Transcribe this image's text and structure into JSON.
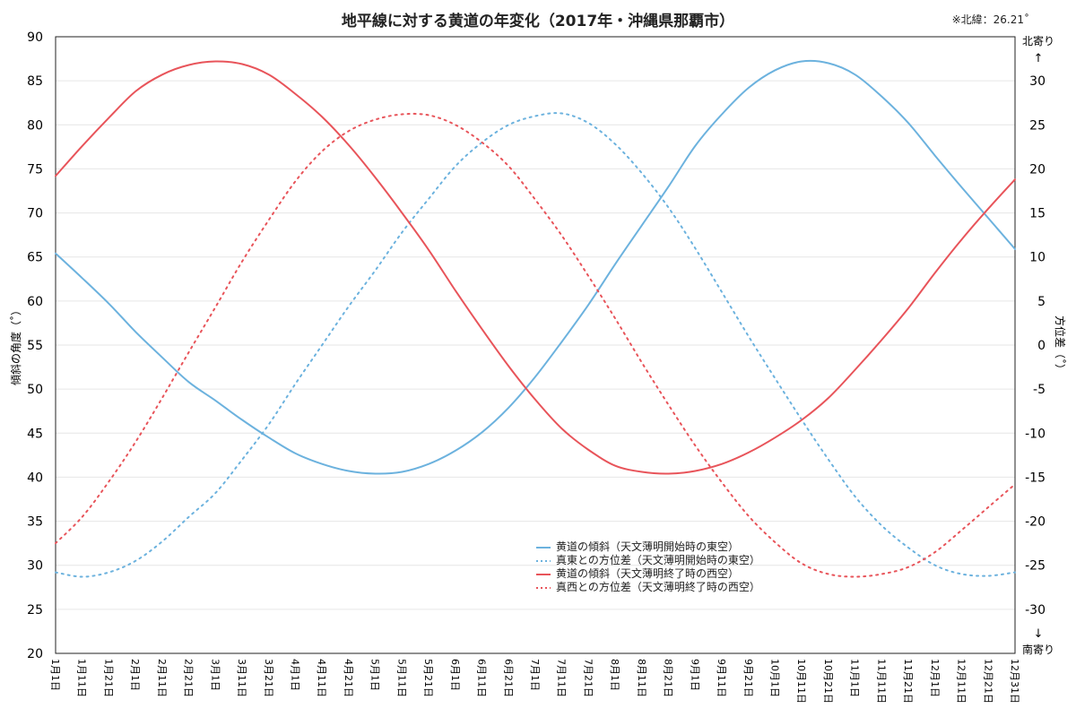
{
  "chart_data": {
    "type": "line",
    "title": "地平線に対する黄道の年変化（2017年・沖縄県那覇市）",
    "note": "※北緯：26.21˚",
    "ylabel_left": "傾斜の角度（˚）",
    "ylabel_right": "方位差（˚）",
    "right_top_label": "北寄り",
    "right_bottom_label": "南寄り",
    "ylim_left": [
      20,
      90
    ],
    "yticks_left": [
      20,
      25,
      30,
      35,
      40,
      45,
      50,
      55,
      60,
      65,
      70,
      75,
      80,
      85,
      90
    ],
    "ylim_right": [
      -35,
      35
    ],
    "yticks_right": [
      -30,
      -25,
      -20,
      -15,
      -10,
      -5,
      0,
      5,
      10,
      15,
      20,
      25,
      30
    ],
    "x_categories": [
      "1月1日",
      "1月11日",
      "1月21日",
      "2月1日",
      "2月11日",
      "2月21日",
      "3月1日",
      "3月11日",
      "3月21日",
      "4月1日",
      "4月11日",
      "4月21日",
      "5月1日",
      "5月11日",
      "5月21日",
      "6月1日",
      "6月11日",
      "6月21日",
      "7月1日",
      "7月11日",
      "7月21日",
      "8月1日",
      "8月11日",
      "8月21日",
      "9月1日",
      "9月11日",
      "9月21日",
      "10月1日",
      "10月11日",
      "10月21日",
      "11月1日",
      "11月11日",
      "11月21日",
      "12月1日",
      "12月11日",
      "12月21日",
      "12月31日"
    ],
    "grid": true,
    "legend_position": "center-bottom",
    "series": [
      {
        "name": "黄道の傾斜（天文薄明開始時の東空）",
        "axis": "left",
        "style": "solid",
        "color": "#6cb2de",
        "values": [
          65.4,
          62.6,
          59.7,
          56.5,
          53.6,
          50.8,
          48.7,
          46.5,
          44.5,
          42.7,
          41.5,
          40.7,
          40.4,
          40.6,
          41.5,
          43.0,
          45.1,
          47.9,
          51.4,
          55.4,
          59.6,
          64.2,
          68.6,
          73.0,
          77.6,
          81.2,
          84.2,
          86.2,
          87.2,
          87.0,
          85.7,
          83.2,
          80.2,
          76.5,
          72.9,
          69.4,
          65.9
        ]
      },
      {
        "name": "真東との方位差（天文薄明開始時の東空）",
        "axis": "right",
        "style": "dotted",
        "color": "#6cb2de",
        "values": [
          -25.8,
          -26.3,
          -25.8,
          -24.5,
          -22.3,
          -19.5,
          -16.8,
          -13.0,
          -9.0,
          -4.4,
          0.0,
          4.4,
          8.5,
          12.8,
          16.6,
          20.3,
          23.0,
          25.0,
          26.0,
          26.3,
          25.2,
          22.8,
          19.5,
          15.6,
          11.0,
          6.0,
          1.0,
          -3.8,
          -8.5,
          -13.0,
          -17.2,
          -20.5,
          -23.0,
          -25.0,
          -26.0,
          -26.2,
          -25.8
        ]
      },
      {
        "name": "黄道の傾斜（天文薄明終了時の西空）",
        "axis": "left",
        "style": "solid",
        "color": "#e8545a",
        "values": [
          74.2,
          77.6,
          80.8,
          83.8,
          85.7,
          86.8,
          87.2,
          86.9,
          85.7,
          83.5,
          80.9,
          77.7,
          74.0,
          70.0,
          65.8,
          61.2,
          56.8,
          52.6,
          48.8,
          45.5,
          43.1,
          41.3,
          40.6,
          40.4,
          40.7,
          41.5,
          42.8,
          44.5,
          46.5,
          49.0,
          52.2,
          55.6,
          59.2,
          63.2,
          67.0,
          70.5,
          73.8
        ]
      },
      {
        "name": "真西との方位差（天文薄明終了時の西空）",
        "axis": "right",
        "style": "dotted",
        "color": "#e8545a",
        "values": [
          -22.5,
          -19.5,
          -15.5,
          -11.0,
          -6.0,
          -0.8,
          4.3,
          9.5,
          14.2,
          18.6,
          22.0,
          24.3,
          25.6,
          26.2,
          26.1,
          25.0,
          23.0,
          20.3,
          16.5,
          12.4,
          7.8,
          3.0,
          -2.0,
          -6.8,
          -11.4,
          -15.6,
          -19.4,
          -22.4,
          -24.8,
          -26.0,
          -26.3,
          -26.0,
          -25.2,
          -23.5,
          -21.0,
          -18.4,
          -15.8
        ]
      }
    ]
  }
}
